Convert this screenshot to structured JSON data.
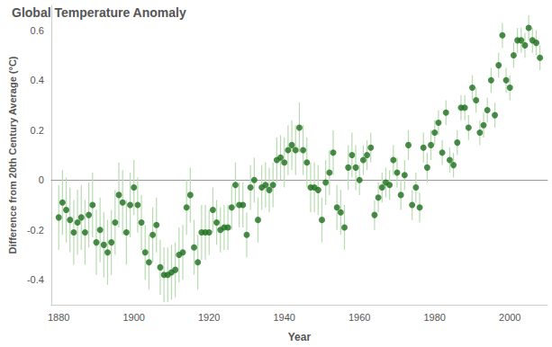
{
  "chart_data": {
    "type": "scatter",
    "title": "Global Temperature Anomaly",
    "x_label": "Year",
    "y_label": "Difference from 20th Century Average (°C)",
    "x": [
      1880,
      1881,
      1882,
      1883,
      1884,
      1885,
      1886,
      1887,
      1888,
      1889,
      1890,
      1891,
      1892,
      1893,
      1894,
      1895,
      1896,
      1897,
      1898,
      1899,
      1900,
      1901,
      1902,
      1903,
      1904,
      1905,
      1906,
      1907,
      1908,
      1909,
      1910,
      1911,
      1912,
      1913,
      1914,
      1915,
      1916,
      1917,
      1918,
      1919,
      1920,
      1921,
      1922,
      1923,
      1924,
      1925,
      1926,
      1927,
      1928,
      1929,
      1930,
      1931,
      1932,
      1933,
      1934,
      1935,
      1936,
      1937,
      1938,
      1939,
      1940,
      1941,
      1942,
      1943,
      1944,
      1945,
      1946,
      1947,
      1948,
      1949,
      1950,
      1951,
      1952,
      1953,
      1954,
      1955,
      1956,
      1957,
      1958,
      1959,
      1960,
      1961,
      1962,
      1963,
      1964,
      1965,
      1966,
      1967,
      1968,
      1969,
      1970,
      1971,
      1972,
      1973,
      1974,
      1975,
      1976,
      1977,
      1978,
      1979,
      1980,
      1981,
      1982,
      1983,
      1984,
      1985,
      1986,
      1987,
      1988,
      1989,
      1990,
      1991,
      1992,
      1993,
      1994,
      1995,
      1996,
      1997,
      1998,
      1999,
      2000,
      2001,
      2002,
      2003,
      2004,
      2005,
      2006,
      2007,
      2008
    ],
    "values": [
      -0.15,
      -0.09,
      -0.12,
      -0.16,
      -0.21,
      -0.17,
      -0.15,
      -0.21,
      -0.14,
      -0.1,
      -0.25,
      -0.2,
      -0.26,
      -0.29,
      -0.25,
      -0.17,
      -0.06,
      -0.09,
      -0.21,
      -0.1,
      -0.03,
      -0.1,
      -0.17,
      -0.29,
      -0.33,
      -0.22,
      -0.18,
      -0.35,
      -0.38,
      -0.38,
      -0.37,
      -0.36,
      -0.3,
      -0.29,
      -0.11,
      -0.06,
      -0.27,
      -0.33,
      -0.21,
      -0.21,
      -0.21,
      -0.12,
      -0.17,
      -0.2,
      -0.19,
      -0.19,
      -0.11,
      -0.02,
      -0.1,
      -0.1,
      -0.22,
      -0.03,
      0.0,
      -0.16,
      -0.03,
      -0.02,
      -0.04,
      -0.02,
      0.08,
      0.09,
      0.07,
      0.12,
      0.14,
      0.12,
      0.21,
      0.12,
      0.07,
      -0.03,
      -0.03,
      -0.04,
      -0.16,
      -0.01,
      0.03,
      0.11,
      -0.11,
      -0.13,
      -0.19,
      0.05,
      0.1,
      0.05,
      0.0,
      0.08,
      0.1,
      0.13,
      -0.14,
      -0.07,
      -0.03,
      -0.01,
      -0.02,
      0.08,
      0.03,
      -0.06,
      0.02,
      0.14,
      -0.1,
      -0.03,
      -0.11,
      0.13,
      0.05,
      0.14,
      0.19,
      0.23,
      0.11,
      0.27,
      0.08,
      0.06,
      0.15,
      0.29,
      0.29,
      0.21,
      0.37,
      0.32,
      0.19,
      0.22,
      0.28,
      0.4,
      0.26,
      0.46,
      0.58,
      0.4,
      0.37,
      0.5,
      0.56,
      0.56,
      0.54,
      0.61,
      0.56,
      0.55,
      0.49
    ],
    "errors": [
      0.13,
      0.13,
      0.13,
      0.13,
      0.13,
      0.13,
      0.13,
      0.13,
      0.13,
      0.13,
      0.13,
      0.13,
      0.13,
      0.13,
      0.13,
      0.13,
      0.13,
      0.13,
      0.13,
      0.13,
      0.11,
      0.11,
      0.11,
      0.11,
      0.11,
      0.11,
      0.11,
      0.11,
      0.11,
      0.11,
      0.11,
      0.11,
      0.11,
      0.11,
      0.11,
      0.11,
      0.11,
      0.11,
      0.11,
      0.11,
      0.09,
      0.09,
      0.09,
      0.09,
      0.09,
      0.09,
      0.09,
      0.09,
      0.09,
      0.09,
      0.09,
      0.09,
      0.09,
      0.09,
      0.09,
      0.09,
      0.09,
      0.09,
      0.09,
      0.09,
      0.1,
      0.1,
      0.1,
      0.1,
      0.1,
      0.1,
      0.1,
      0.1,
      0.1,
      0.1,
      0.09,
      0.09,
      0.09,
      0.09,
      0.09,
      0.09,
      0.09,
      0.09,
      0.09,
      0.09,
      0.06,
      0.06,
      0.06,
      0.06,
      0.06,
      0.06,
      0.06,
      0.06,
      0.06,
      0.06,
      0.06,
      0.06,
      0.06,
      0.06,
      0.06,
      0.06,
      0.06,
      0.06,
      0.06,
      0.06,
      0.05,
      0.05,
      0.05,
      0.05,
      0.05,
      0.05,
      0.05,
      0.05,
      0.05,
      0.05,
      0.05,
      0.05,
      0.05,
      0.05,
      0.05,
      0.05,
      0.05,
      0.05,
      0.05,
      0.05,
      0.05,
      0.05,
      0.05,
      0.05,
      0.05,
      0.05,
      0.05,
      0.05,
      0.05
    ],
    "color": "#1d6e1d",
    "marker": "circle",
    "xlim": [
      1878,
      2010
    ],
    "xticks": [
      1880,
      1900,
      1920,
      1940,
      1960,
      1980,
      2000
    ],
    "ylim": [
      -0.5,
      0.7
    ],
    "yticks": [
      -0.4,
      -0.2,
      0,
      0.2,
      0.4,
      0.6
    ],
    "grid": false
  }
}
